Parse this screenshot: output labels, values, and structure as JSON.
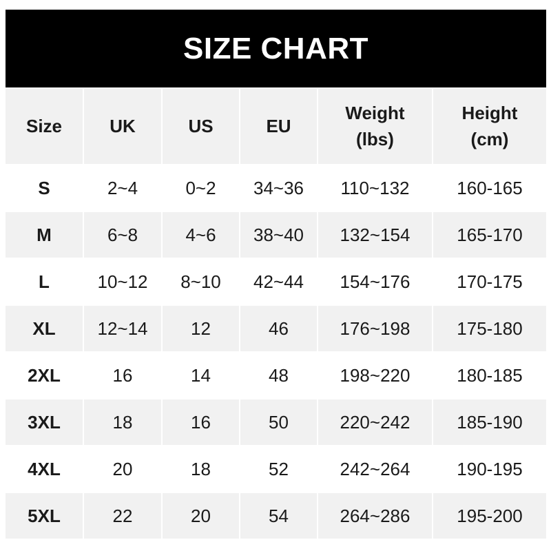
{
  "title": "SIZE CHART",
  "headers": [
    "Size",
    "UK",
    "US",
    "EU",
    "Weight\n(lbs)",
    "Height\n(cm)"
  ],
  "header_lines": [
    [
      "Size"
    ],
    [
      "UK"
    ],
    [
      "US"
    ],
    [
      "EU"
    ],
    [
      "Weight",
      "(lbs)"
    ],
    [
      "Height",
      "(cm)"
    ]
  ],
  "rows": [
    [
      "S",
      "2~4",
      "0~2",
      "34~36",
      "110~132",
      "160-165"
    ],
    [
      "M",
      "6~8",
      "4~6",
      "38~40",
      "132~154",
      "165-170"
    ],
    [
      "L",
      "10~12",
      "8~10",
      "42~44",
      "154~176",
      "170-175"
    ],
    [
      "XL",
      "12~14",
      "12",
      "46",
      "176~198",
      "175-180"
    ],
    [
      "2XL",
      "16",
      "14",
      "48",
      "198~220",
      "180-185"
    ],
    [
      "3XL",
      "18",
      "16",
      "50",
      "220~242",
      "185-190"
    ],
    [
      "4XL",
      "20",
      "18",
      "52",
      "242~264",
      "190-195"
    ],
    [
      "5XL",
      "22",
      "20",
      "54",
      "264~286",
      "195-200"
    ]
  ],
  "colors": {
    "title_bg": "#000000",
    "stripe": "#f1f1f1",
    "text": "#1a1a1a"
  }
}
